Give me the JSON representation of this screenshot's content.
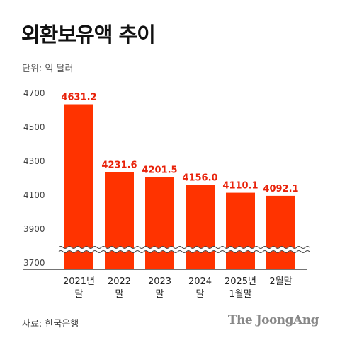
{
  "title": "외환보유액 추이",
  "unit_label": "단위: 억 달러",
  "source": "자료: 한국은행",
  "logo": "The JoongAng",
  "colors": {
    "bar": "#ff3300",
    "value_label": "#e8220a",
    "axis": "#222222",
    "tick": "#444444"
  },
  "chart_data": {
    "type": "bar",
    "title": "외환보유액 추이",
    "ylabel": "단위: 억 달러",
    "xlabel": "",
    "categories": [
      [
        "2021년",
        "말"
      ],
      [
        "2022",
        "말"
      ],
      [
        "2023",
        "말"
      ],
      [
        "2024",
        "말"
      ],
      [
        "2025년",
        "1월말"
      ],
      [
        "2월말"
      ]
    ],
    "values": [
      4631.2,
      4231.6,
      4201.5,
      4156.0,
      4110.1,
      4092.1
    ],
    "value_labels": [
      "4631.2",
      "4231.6",
      "4201.5",
      "4156.0",
      "4110.1",
      "4092.1"
    ],
    "yticks": [
      3700,
      3900,
      4100,
      4300,
      4500,
      4700
    ],
    "ylim": [
      3700,
      4700
    ],
    "axis_break": true,
    "grid": false
  }
}
